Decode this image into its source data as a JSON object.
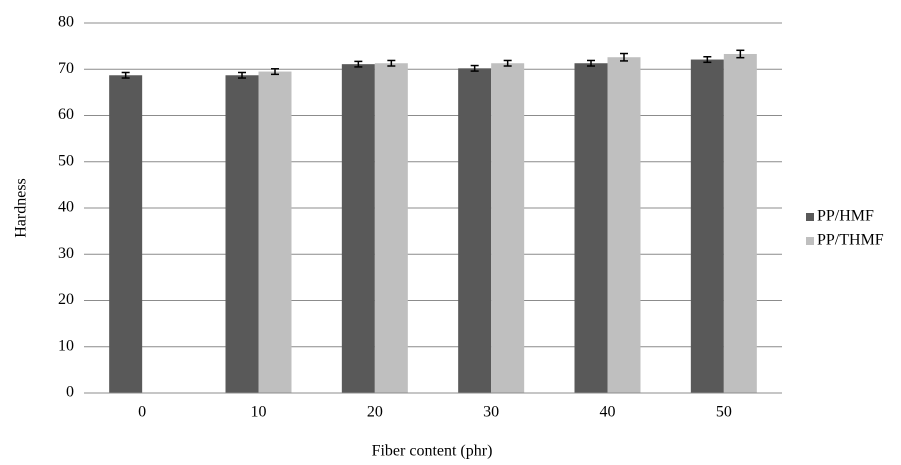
{
  "chart_data": {
    "type": "bar",
    "x_label": "Fiber content (phr)",
    "y_label": "Hardness",
    "categories": [
      "0",
      "10",
      "20",
      "30",
      "40",
      "50"
    ],
    "series": [
      {
        "name": "PP/HMF",
        "color": "#595959",
        "values": [
          68.7,
          68.7,
          71.1,
          70.2,
          71.3,
          72.1
        ],
        "errors": [
          0.6,
          0.6,
          0.6,
          0.6,
          0.6,
          0.6
        ]
      },
      {
        "name": "PP/THMF",
        "color": "#bfbfbf",
        "values": [
          null,
          69.5,
          71.3,
          71.3,
          72.6,
          73.3
        ],
        "errors": [
          null,
          0.6,
          0.6,
          0.6,
          0.8,
          0.8
        ]
      }
    ],
    "ylim": [
      0,
      80
    ],
    "yticks": [
      0,
      10,
      20,
      30,
      40,
      50,
      60,
      70,
      80
    ],
    "grid": true,
    "legend": "right"
  }
}
